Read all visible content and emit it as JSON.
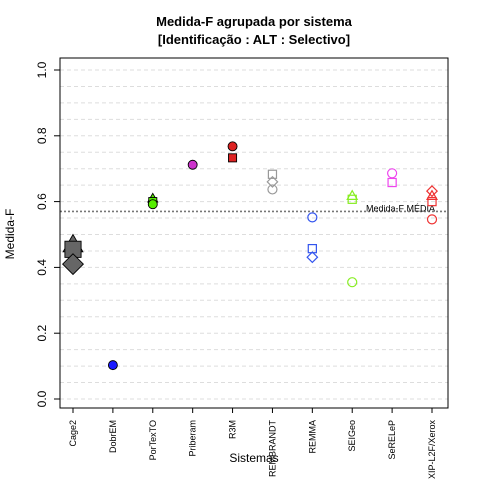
{
  "chart_data": {
    "type": "scatter",
    "title": "Medida-F agrupada por sistema",
    "subtitle": "[Identificação : ALT : Selectivo]",
    "xlabel": "Sistemas",
    "ylabel": "Medida-F",
    "ylim": [
      0.0,
      1.0
    ],
    "y_ticks": [
      "0.0",
      "0.2",
      "0.4",
      "0.6",
      "0.8",
      "1.0"
    ],
    "grid": true,
    "categories": [
      "Cage2",
      "DobrEM",
      "PorTexTO",
      "Priberam",
      "R3M",
      "REMBRANDT",
      "REMMA",
      "SEIGeo",
      "SeRELeP",
      "XIP-L2F/Xerox"
    ],
    "reference_line": {
      "label": "Medida-F MÉDIA",
      "value": 0.57
    },
    "series": [
      {
        "category": "Cage2",
        "color": "#666666",
        "points": [
          {
            "shape": "triangle",
            "filled": true,
            "value": 0.47
          },
          {
            "shape": "square",
            "filled": true,
            "value": 0.455
          },
          {
            "shape": "diamond",
            "filled": true,
            "value": 0.41
          }
        ]
      },
      {
        "category": "DobrEM",
        "color": "#1a1aff",
        "points": [
          {
            "shape": "circle",
            "filled": true,
            "value": 0.103
          }
        ]
      },
      {
        "category": "PorTexTO",
        "color": "#55ee00",
        "points": [
          {
            "shape": "triangle",
            "filled": true,
            "value": 0.61
          },
          {
            "shape": "square",
            "filled": true,
            "value": 0.6
          },
          {
            "shape": "circle",
            "filled": true,
            "value": 0.592
          }
        ]
      },
      {
        "category": "Priberam",
        "color": "#cc33cc",
        "points": [
          {
            "shape": "circle",
            "filled": true,
            "value": 0.712
          }
        ]
      },
      {
        "category": "R3M",
        "color": "#dd2222",
        "points": [
          {
            "shape": "circle",
            "filled": true,
            "value": 0.768
          },
          {
            "shape": "square",
            "filled": true,
            "value": 0.733
          }
        ]
      },
      {
        "category": "REMBRANDT",
        "color": "#999999",
        "points": [
          {
            "shape": "square",
            "filled": false,
            "value": 0.683
          },
          {
            "shape": "diamond",
            "filled": false,
            "value": 0.66
          },
          {
            "shape": "circle",
            "filled": false,
            "value": 0.637
          }
        ]
      },
      {
        "category": "REMMA",
        "color": "#3355ee",
        "points": [
          {
            "shape": "circle",
            "filled": false,
            "value": 0.552
          },
          {
            "shape": "square",
            "filled": false,
            "value": 0.457
          },
          {
            "shape": "diamond",
            "filled": false,
            "value": 0.431
          }
        ]
      },
      {
        "category": "SEIGeo",
        "color": "#88ee22",
        "points": [
          {
            "shape": "triangle",
            "filled": false,
            "value": 0.618
          },
          {
            "shape": "square",
            "filled": false,
            "value": 0.607
          },
          {
            "shape": "circle",
            "filled": false,
            "value": 0.355
          }
        ]
      },
      {
        "category": "SeRELeP",
        "color": "#ee44ee",
        "points": [
          {
            "shape": "circle",
            "filled": false,
            "value": 0.686
          },
          {
            "shape": "square",
            "filled": false,
            "value": 0.658
          }
        ]
      },
      {
        "category": "XIP-L2F/Xerox",
        "color": "#ee3333",
        "points": [
          {
            "shape": "diamond",
            "filled": false,
            "value": 0.632
          },
          {
            "shape": "triangle",
            "filled": false,
            "value": 0.618
          },
          {
            "shape": "square",
            "filled": false,
            "value": 0.6
          },
          {
            "shape": "circle",
            "filled": false,
            "value": 0.546
          }
        ]
      }
    ]
  }
}
